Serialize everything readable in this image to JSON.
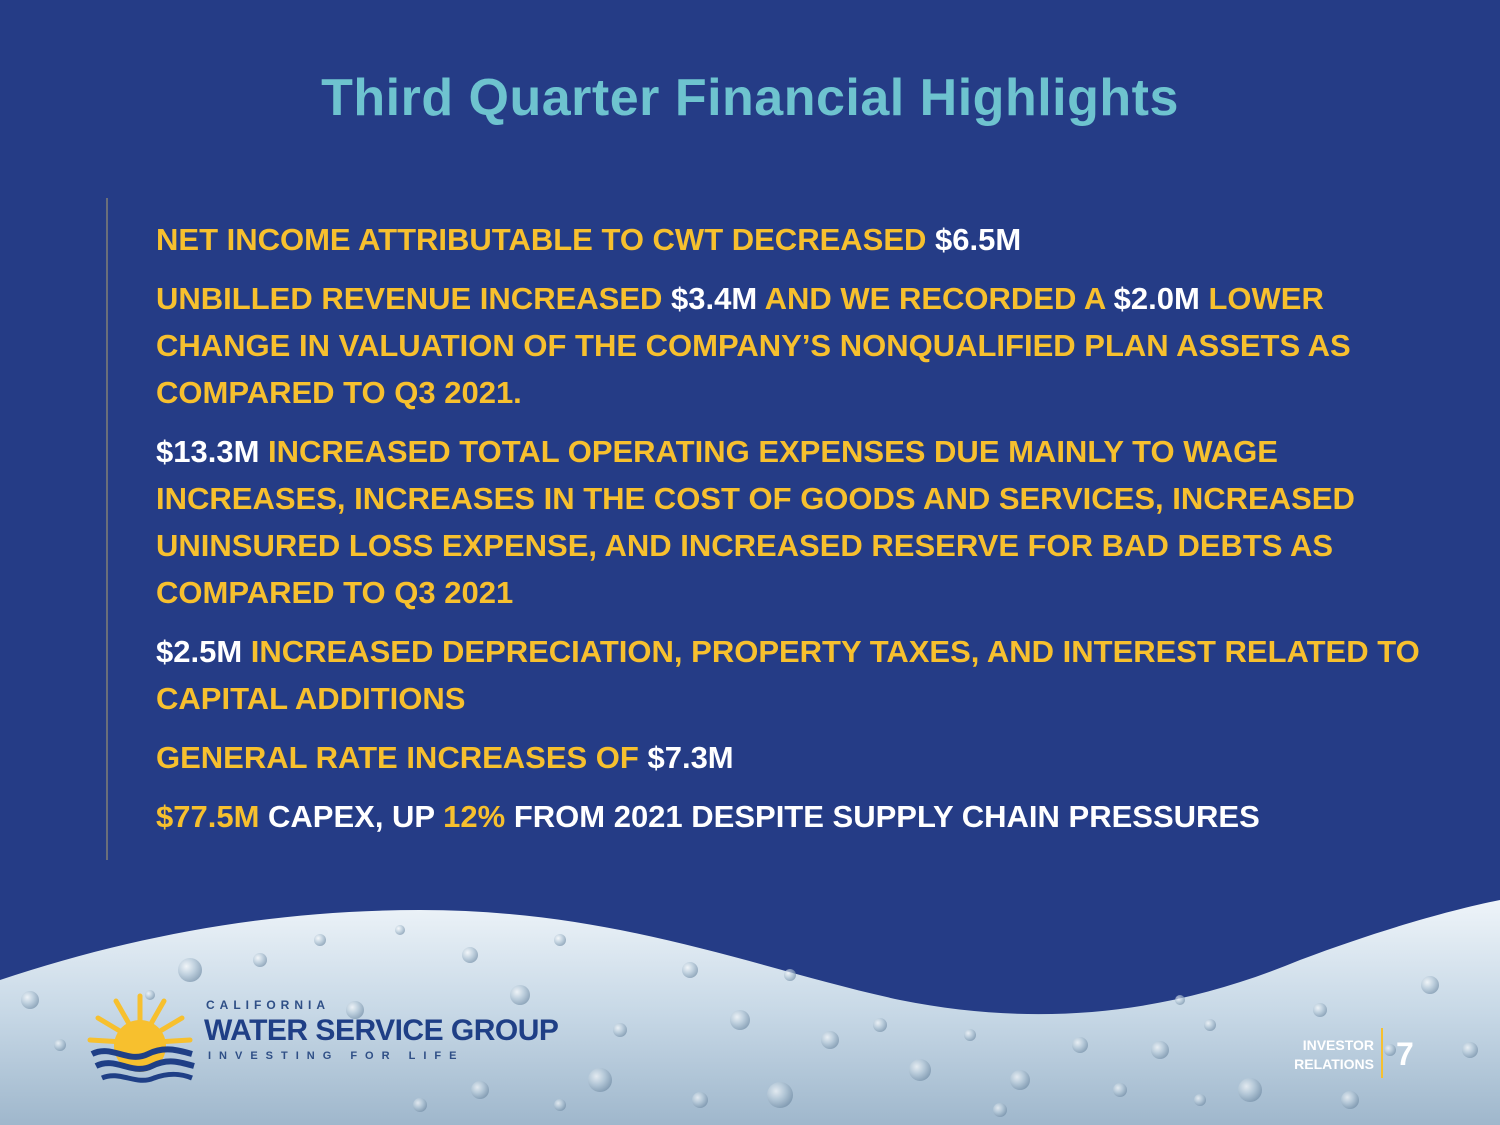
{
  "slide": {
    "title": "Third Quarter Financial Highlights"
  },
  "bullets": [
    [
      {
        "text": "NET INCOME ATTRIBUTABLE TO CWT DECREASED ",
        "color": "yellow"
      },
      {
        "text": "$6.5M",
        "color": "white"
      }
    ],
    [
      {
        "text": "UNBILLED REVENUE INCREASED ",
        "color": "yellow"
      },
      {
        "text": "$3.4M",
        "color": "white"
      },
      {
        "text": " AND WE RECORDED A ",
        "color": "yellow"
      },
      {
        "text": "$2.0M",
        "color": "white"
      },
      {
        "text": " LOWER CHANGE IN VALUATION OF THE COMPANY’S NONQUALIFIED PLAN ASSETS AS COMPARED TO Q3 2021.",
        "color": "yellow"
      }
    ],
    [
      {
        "text": "$13.3M",
        "color": "white"
      },
      {
        "text": " INCREASED TOTAL OPERATING EXPENSES DUE MAINLY TO WAGE INCREASES, INCREASES IN THE COST OF GOODS AND SERVICES, INCREASED UNINSURED LOSS EXPENSE, AND INCREASED RESERVE FOR BAD DEBTS AS COMPARED TO Q3 2021",
        "color": "yellow"
      }
    ],
    [
      {
        "text": "$2.5M",
        "color": "white"
      },
      {
        "text": " INCREASED DEPRECIATION, PROPERTY TAXES,  AND INTEREST RELATED TO CAPITAL ADDITIONS",
        "color": "yellow"
      }
    ],
    [
      {
        "text": "GENERAL RATE INCREASES OF ",
        "color": "yellow"
      },
      {
        "text": "$7.3M",
        "color": "white"
      }
    ],
    [
      {
        "text": "$77.5M",
        "color": "yellow"
      },
      {
        "text": " CAPEX, UP ",
        "color": "white"
      },
      {
        "text": "12%",
        "color": "yellow"
      },
      {
        "text": " FROM 2021 DESPITE SUPPLY CHAIN PRESSURES",
        "color": "white"
      }
    ]
  ],
  "logo": {
    "top_line": "CALIFORNIA",
    "name": "WATER SERVICE GROUP",
    "tagline": "INVESTING FOR LIFE"
  },
  "footer": {
    "section_line1": "INVESTOR",
    "section_line2": "RELATIONS",
    "page_number": "7"
  },
  "colors": {
    "background": "#253c86",
    "title": "#6ec3cf",
    "highlight_yellow": "#f7c02e",
    "highlight_white": "#ffffff",
    "logo_blue": "#1f3f86",
    "sun_yellow": "#f7c02e"
  }
}
